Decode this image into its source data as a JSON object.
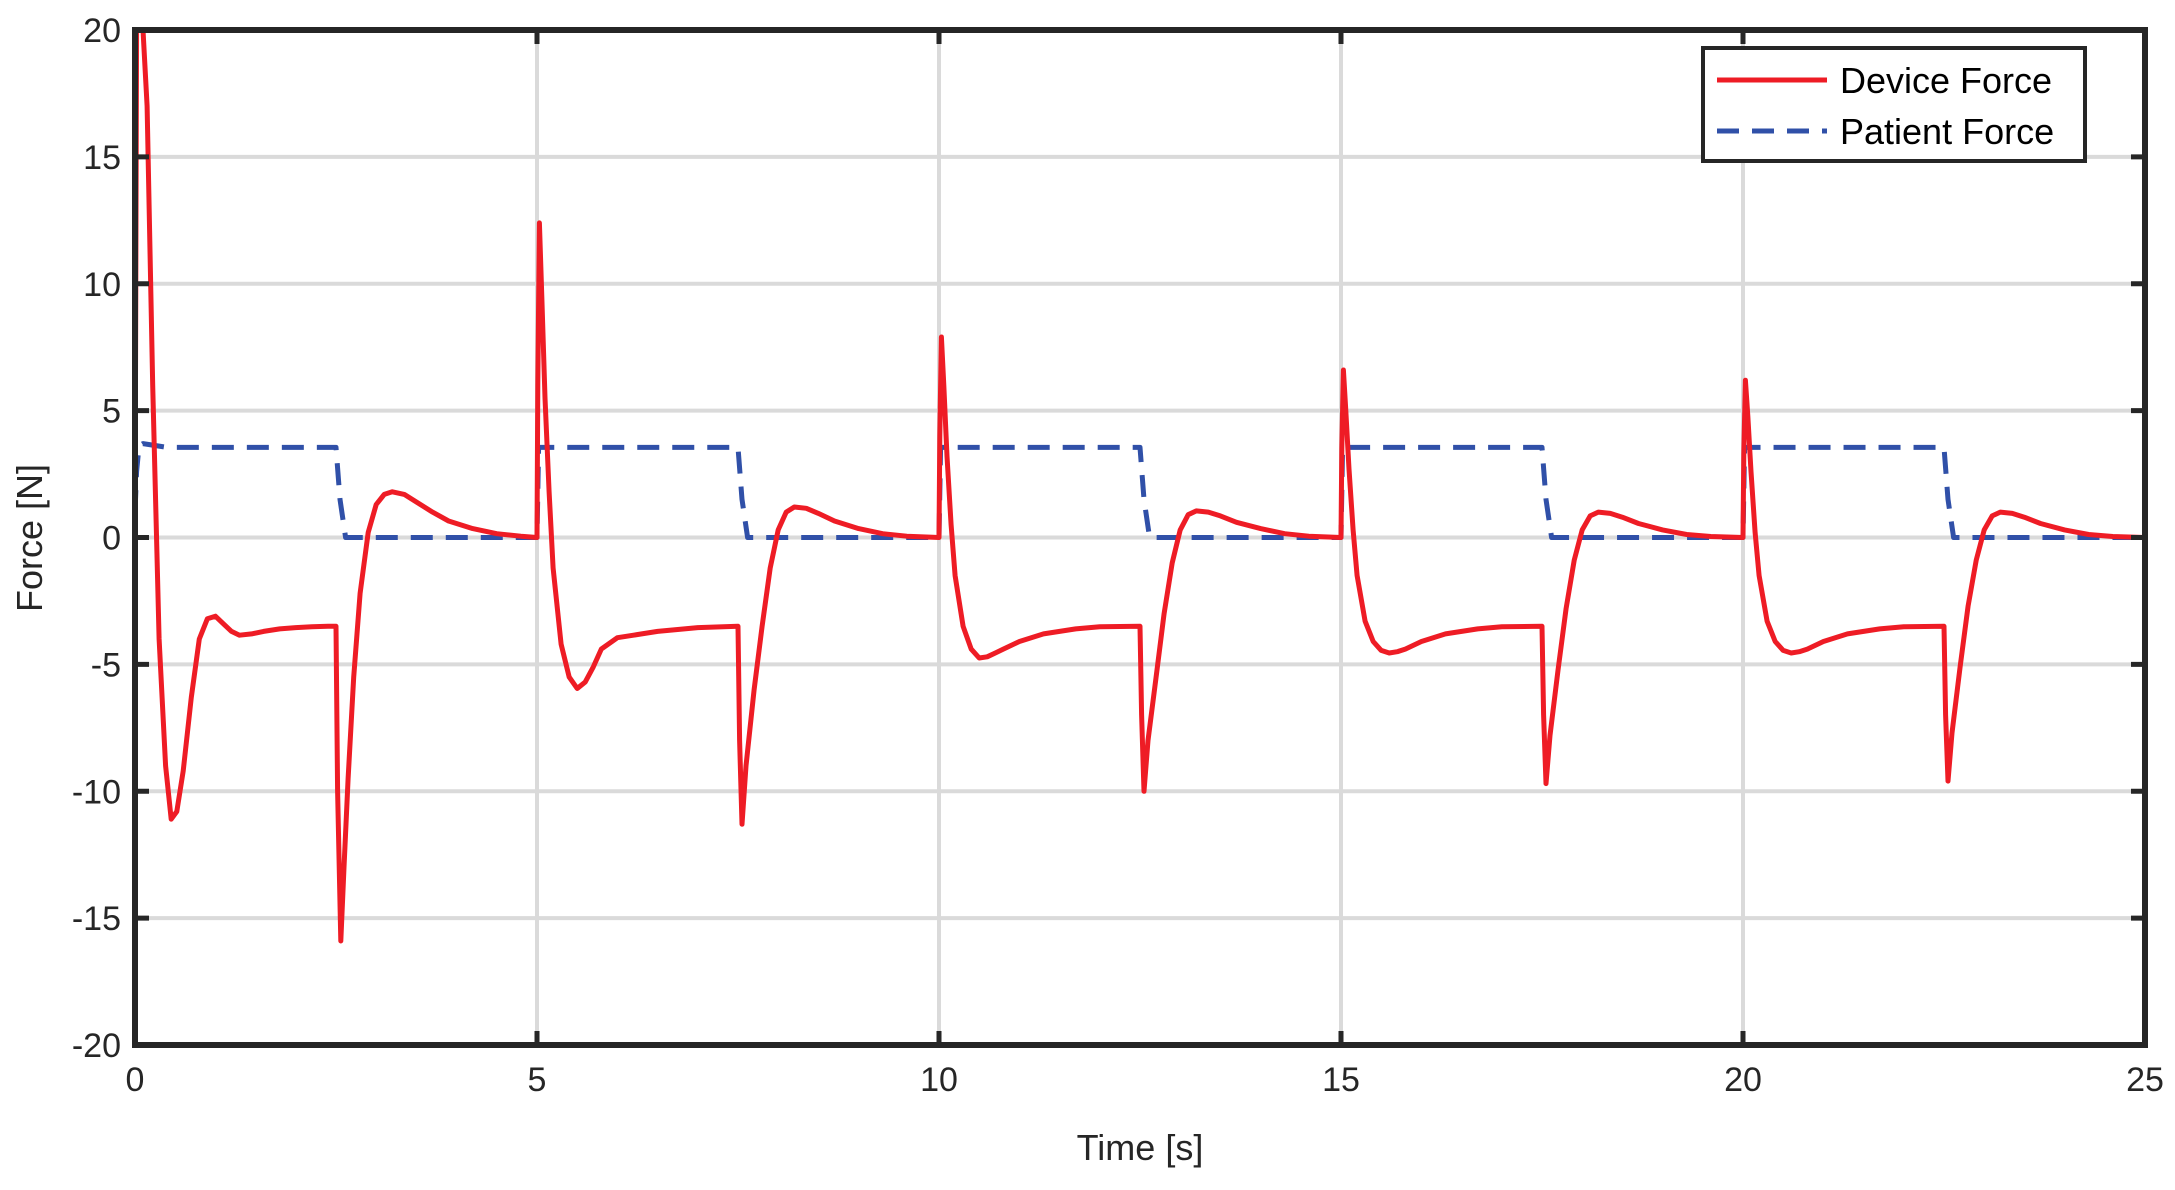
{
  "chart_data": {
    "type": "line",
    "title": "",
    "xlabel": "Time [s]",
    "ylabel": "Force [N]",
    "xlim": [
      0,
      25
    ],
    "ylim": [
      -20,
      20
    ],
    "xticks": [
      0,
      5,
      10,
      15,
      20,
      25
    ],
    "xtick_labels": [
      "0",
      "5",
      "10",
      "15",
      "20",
      "25"
    ],
    "yticks": [
      -20,
      -15,
      -10,
      -5,
      0,
      5,
      10,
      15,
      20
    ],
    "ytick_labels": [
      "-20",
      "-15",
      "-10",
      "-5",
      "0",
      "5",
      "10",
      "15",
      "20"
    ],
    "grid": true,
    "legend_position": "top-right",
    "series": [
      {
        "name": "Device Force",
        "color": "#ee1c25",
        "style": "solid",
        "x": [
          0,
          0.02,
          0.06,
          0.1,
          0.15,
          0.22,
          0.3,
          0.38,
          0.45,
          0.52,
          0.6,
          0.7,
          0.8,
          0.9,
          1.0,
          1.1,
          1.2,
          1.3,
          1.45,
          1.6,
          1.8,
          2.0,
          2.2,
          2.4,
          2.5,
          2.52,
          2.56,
          2.6,
          2.65,
          2.72,
          2.8,
          2.9,
          3.0,
          3.1,
          3.2,
          3.35,
          3.5,
          3.7,
          3.9,
          4.2,
          4.5,
          4.8,
          5.0,
          5.01,
          5.03,
          5.06,
          5.1,
          5.15,
          5.2,
          5.3,
          5.4,
          5.5,
          5.6,
          5.7,
          5.8,
          6.0,
          6.2,
          6.5,
          7.0,
          7.5,
          7.52,
          7.55,
          7.6,
          7.7,
          7.8,
          7.9,
          8.0,
          8.1,
          8.2,
          8.35,
          8.5,
          8.7,
          9.0,
          9.3,
          9.6,
          10.0,
          10.01,
          10.03,
          10.06,
          10.1,
          10.15,
          10.2,
          10.3,
          10.4,
          10.5,
          10.6,
          10.7,
          10.8,
          11.0,
          11.3,
          11.7,
          12.0,
          12.5,
          12.52,
          12.55,
          12.6,
          12.7,
          12.8,
          12.9,
          13.0,
          13.1,
          13.2,
          13.35,
          13.5,
          13.7,
          14.0,
          14.3,
          14.6,
          15.0,
          15.01,
          15.03,
          15.06,
          15.1,
          15.15,
          15.2,
          15.3,
          15.4,
          15.5,
          15.6,
          15.7,
          15.8,
          16.0,
          16.3,
          16.7,
          17.0,
          17.5,
          17.52,
          17.55,
          17.6,
          17.7,
          17.8,
          17.9,
          18.0,
          18.1,
          18.2,
          18.35,
          18.5,
          18.7,
          19.0,
          19.3,
          19.6,
          20.0,
          20.01,
          20.03,
          20.06,
          20.1,
          20.15,
          20.2,
          20.3,
          20.4,
          20.5,
          20.6,
          20.7,
          20.8,
          21.0,
          21.3,
          21.7,
          22.0,
          22.5,
          22.52,
          22.55,
          22.6,
          22.7,
          22.8,
          22.9,
          23.0,
          23.1,
          23.2,
          23.35,
          23.5,
          23.7,
          24.0,
          24.3,
          24.6,
          25.0
        ],
        "y": [
          0,
          20,
          20,
          20,
          17,
          6,
          -4,
          -9,
          -11.1,
          -10.8,
          -9.2,
          -6.3,
          -4,
          -3.2,
          -3.1,
          -3.4,
          -3.7,
          -3.85,
          -3.8,
          -3.7,
          -3.6,
          -3.55,
          -3.52,
          -3.5,
          -3.5,
          -10,
          -15.9,
          -13,
          -9.5,
          -5.5,
          -2.2,
          0.2,
          1.3,
          1.7,
          1.8,
          1.7,
          1.4,
          1.0,
          0.65,
          0.35,
          0.15,
          0.05,
          0,
          6,
          12.4,
          9.5,
          5.5,
          1.8,
          -1.2,
          -4.2,
          -5.5,
          -5.95,
          -5.7,
          -5.1,
          -4.4,
          -3.95,
          -3.85,
          -3.7,
          -3.55,
          -3.5,
          -8,
          -11.3,
          -9,
          -6,
          -3.5,
          -1.2,
          0.3,
          1.0,
          1.2,
          1.15,
          0.95,
          0.65,
          0.35,
          0.15,
          0.05,
          0,
          4,
          7.9,
          6,
          3.2,
          0.5,
          -1.5,
          -3.5,
          -4.4,
          -4.75,
          -4.7,
          -4.55,
          -4.4,
          -4.1,
          -3.8,
          -3.6,
          -3.52,
          -3.5,
          -7,
          -10,
          -8,
          -5.5,
          -3,
          -1,
          0.3,
          0.9,
          1.05,
          1.0,
          0.85,
          0.6,
          0.35,
          0.15,
          0.05,
          0,
          3.5,
          6.6,
          5,
          2.7,
          0.3,
          -1.5,
          -3.3,
          -4.1,
          -4.45,
          -4.55,
          -4.5,
          -4.4,
          -4.1,
          -3.8,
          -3.6,
          -3.52,
          -3.5,
          -7,
          -9.7,
          -7.8,
          -5.2,
          -2.8,
          -0.9,
          0.3,
          0.85,
          1.0,
          0.95,
          0.8,
          0.55,
          0.3,
          0.12,
          0.04,
          0,
          3.3,
          6.2,
          4.8,
          2.6,
          0.2,
          -1.5,
          -3.3,
          -4.1,
          -4.45,
          -4.55,
          -4.5,
          -4.4,
          -4.1,
          -3.8,
          -3.6,
          -3.52,
          -3.5,
          -7,
          -9.6,
          -7.7,
          -5.1,
          -2.7,
          -0.9,
          0.3,
          0.85,
          1.0,
          0.95,
          0.8,
          0.55,
          0.3,
          0.12,
          0.04,
          0
        ]
      },
      {
        "name": "Patient Force",
        "color": "#3050a8",
        "style": "dashed",
        "x": [
          0,
          0.02,
          0.05,
          0.1,
          0.2,
          0.4,
          2.5,
          2.55,
          2.62,
          5.0,
          5.02,
          5.1,
          7.5,
          7.55,
          7.62,
          10.0,
          10.02,
          10.1,
          12.5,
          12.55,
          12.62,
          15.0,
          15.02,
          15.1,
          17.5,
          17.55,
          17.62,
          20.0,
          20.02,
          20.1,
          22.5,
          22.55,
          22.62,
          25.0
        ],
        "y": [
          1.0,
          2.6,
          3.6,
          3.7,
          3.65,
          3.55,
          3.55,
          1.5,
          0,
          0,
          3.55,
          3.55,
          3.55,
          1.5,
          0,
          0,
          3.55,
          3.55,
          3.55,
          1.5,
          0,
          0,
          3.55,
          3.55,
          3.55,
          1.5,
          0,
          0,
          3.55,
          3.55,
          3.55,
          1.5,
          0,
          0
        ]
      }
    ]
  }
}
